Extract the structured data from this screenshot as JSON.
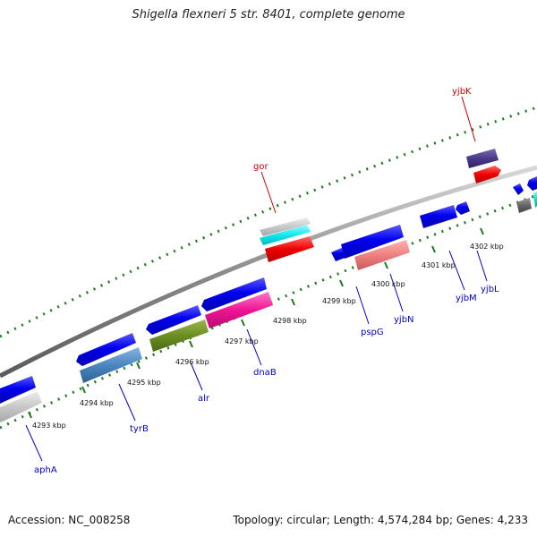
{
  "title": "Shigella flexneri 5 str. 8401, complete genome",
  "footer": {
    "accession": "Accession: NC_008258",
    "summary": "Topology: circular; Length: 4,574,284 bp; Genes: 4,233"
  },
  "colors": {
    "background": "#ffffff",
    "backbone": "#8c8c8c",
    "tick": "#1f7a1f",
    "label_top": "#cc0000",
    "label_bottom": "#0000cc"
  },
  "ticks": [
    "4293 kbp",
    "4294 kbp",
    "4295 kbp",
    "4296 kbp",
    "4297 kbp",
    "4298 kbp",
    "4299 kbp",
    "4300 kbp",
    "4301 kbp",
    "4302 kbp"
  ],
  "gene_labels": {
    "top": [
      "gor",
      "yjbK"
    ],
    "bottom": [
      "aphA",
      "tyrB",
      "alr",
      "dnaB",
      "pspG",
      "yjbN",
      "yjbM",
      "yjbL"
    ]
  },
  "features": {
    "forward_cds": [
      "blue",
      "blue",
      "blue",
      "blue",
      "blue",
      "blue",
      "blue",
      "blue",
      "blue"
    ],
    "reverse_cds": [
      "blue",
      "blue",
      "blue"
    ],
    "colored": [
      "light-gray",
      "cyan",
      "red",
      "dark-purple",
      "red",
      "steel-blue",
      "olive-green",
      "pink",
      "salmon",
      "dark-gray",
      "teal",
      "light-gray"
    ]
  }
}
